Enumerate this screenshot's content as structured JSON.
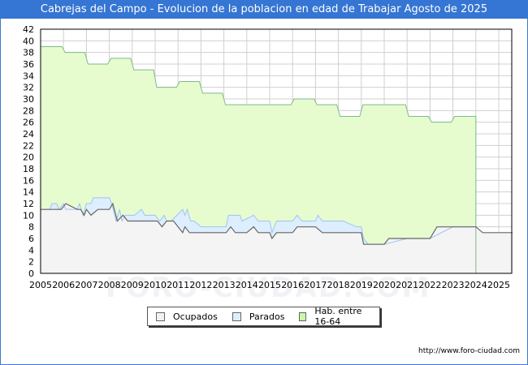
{
  "header": {
    "title": "Cabrejas del Campo - Evolucion de la poblacion en edad de Trabajar Agosto de 2025"
  },
  "footer": {
    "url": "http://www.foro-ciudad.com"
  },
  "watermark": "FORO-CIUDAD.COM",
  "legend": {
    "items": [
      {
        "label": "Ocupados",
        "color": "#f2f2f2"
      },
      {
        "label": "Parados",
        "color": "#ddeeff"
      },
      {
        "label": "Hab. entre 16-64",
        "color": "#e6fccf"
      }
    ]
  },
  "colors": {
    "title_bg": "#3575d3",
    "hab_fill": "#e6fccf",
    "hab_line": "#7fba8a",
    "parados_fill": "#ddeeff",
    "parados_line": "#9fc3f0",
    "ocupados_fill": "#f4f4f4",
    "ocupados_line": "#666666",
    "grid": "#d0d0d0"
  },
  "chart_data": {
    "type": "area",
    "title": "Cabrejas del Campo - Evolucion de la poblacion en edad de Trabajar Agosto de 2025",
    "xlabel": "",
    "ylabel": "",
    "ylim": [
      0,
      42
    ],
    "xlim": [
      2005,
      2025.6
    ],
    "grid": true,
    "legend_position": "bottom",
    "y_ticks": [
      0,
      2,
      4,
      6,
      8,
      10,
      12,
      14,
      16,
      18,
      20,
      22,
      24,
      26,
      28,
      30,
      32,
      34,
      36,
      38,
      40,
      42
    ],
    "x_ticks": [
      "2005",
      "2006",
      "2007",
      "2008",
      "2009",
      "2010",
      "2011",
      "2012",
      "2013",
      "2014",
      "2015",
      "2016",
      "2017",
      "2018",
      "2019",
      "2020",
      "2021",
      "2022",
      "2023",
      "2024",
      "2025"
    ],
    "series": [
      {
        "name": "Hab. entre 16-64",
        "type": "step",
        "x": [
          2005,
          2006,
          2007,
          2008,
          2009,
          2010,
          2011,
          2012,
          2013,
          2014,
          2015,
          2016,
          2017,
          2018,
          2019,
          2020,
          2021,
          2022,
          2023,
          2024
        ],
        "values": [
          39,
          38,
          36,
          37,
          35,
          32,
          33,
          31,
          29,
          29,
          29,
          30,
          29,
          27,
          29,
          29,
          27,
          26,
          27,
          null
        ]
      },
      {
        "name": "Parados",
        "note": "stacked on top of Ocupados (upper boundary = Ocupados + Parados)",
        "x": [
          2005,
          2005.4,
          2005.5,
          2005.7,
          2005.8,
          2006.0,
          2006.1,
          2006.6,
          2006.7,
          2006.85,
          2007.0,
          2007.2,
          2007.3,
          2008.0,
          2008.1,
          2008.3,
          2008.45,
          2008.55,
          2008.7,
          2009.0,
          2009.1,
          2009.4,
          2009.55,
          2009.7,
          2010.0,
          2010.2,
          2010.4,
          2010.5,
          2010.7,
          2011.2,
          2011.3,
          2011.4,
          2011.55,
          2011.7,
          2012.0,
          2013.1,
          2013.2,
          2013.7,
          2013.8,
          2014.3,
          2014.5,
          2015.0,
          2015.1,
          2015.3,
          2015.5,
          2016.0,
          2016.2,
          2016.4,
          2017.0,
          2017.1,
          2017.3,
          2018.2,
          2018.8,
          2019.0,
          2019.1,
          2019.3,
          2020.0,
          2021.0,
          2022.0,
          2023.0,
          2024.0
        ],
        "values": [
          11,
          11,
          12,
          12,
          11,
          12,
          11,
          11,
          12,
          10,
          12,
          12,
          13,
          13,
          12,
          9,
          11,
          9,
          10,
          10,
          10,
          11,
          10,
          10,
          10,
          9,
          10,
          9,
          9,
          11,
          10,
          11,
          9,
          9,
          8,
          8,
          10,
          10,
          9,
          10,
          9,
          9,
          7,
          9,
          9,
          9,
          10,
          9,
          9,
          10,
          9,
          9,
          8,
          8,
          6,
          5,
          5,
          6,
          6,
          8,
          8
        ]
      },
      {
        "name": "Ocupados",
        "x": [
          2005,
          2005.9,
          2006.1,
          2006.6,
          2006.75,
          2006.9,
          2007.0,
          2007.2,
          2007.5,
          2008.0,
          2008.15,
          2008.35,
          2008.6,
          2008.8,
          2009.0,
          2010.0,
          2010.1,
          2010.3,
          2010.5,
          2010.8,
          2011.0,
          2011.2,
          2011.3,
          2011.5,
          2012.0,
          2013.0,
          2013.1,
          2013.3,
          2013.5,
          2014.0,
          2014.3,
          2014.5,
          2014.7,
          2015.0,
          2015.1,
          2015.3,
          2015.5,
          2016.0,
          2016.2,
          2016.5,
          2017.0,
          2017.3,
          2018.0,
          2019.0,
          2019.1,
          2019.2,
          2020.0,
          2020.2,
          2021.0,
          2021.5,
          2022.0,
          2022.3,
          2023.0,
          2024.0,
          2024.3,
          2025.6
        ],
        "values": [
          11,
          11,
          12,
          11,
          11,
          10,
          11,
          10,
          11,
          11,
          12,
          9,
          10,
          9,
          9,
          9,
          9,
          8,
          9,
          9,
          8,
          7,
          8,
          7,
          7,
          7,
          7,
          8,
          7,
          7,
          8,
          7,
          7,
          7,
          6,
          7,
          7,
          7,
          8,
          8,
          8,
          7,
          7,
          7,
          5,
          5,
          5,
          6,
          6,
          6,
          6,
          8,
          8,
          8,
          7,
          7
        ]
      }
    ]
  }
}
